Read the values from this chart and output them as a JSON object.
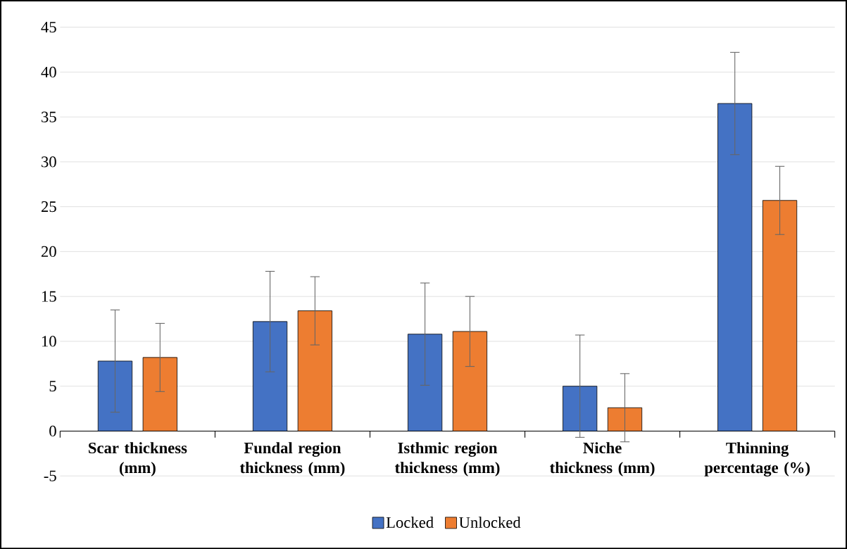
{
  "chart_data": {
    "type": "bar",
    "categories": [
      "Scar thickness (mm)",
      "Fundal region thickness (mm)",
      "Isthmic region thickness (mm)",
      "Niche thickness (mm)",
      "Thinning percentage (%)"
    ],
    "series": [
      {
        "name": "Locked",
        "color": "#4472c4",
        "values": [
          7.8,
          12.2,
          10.8,
          5.0,
          36.5
        ],
        "errors": [
          5.7,
          5.6,
          5.7,
          5.7,
          5.7
        ]
      },
      {
        "name": "Unlocked",
        "color": "#ed7d31",
        "values": [
          8.2,
          13.4,
          11.1,
          2.6,
          25.7
        ],
        "errors": [
          3.8,
          3.8,
          3.9,
          3.8,
          3.8
        ]
      }
    ],
    "ylim": [
      -5,
      45
    ],
    "yticks": [
      -5,
      0,
      5,
      10,
      15,
      20,
      25,
      30,
      35,
      40,
      45
    ],
    "grid": "y",
    "legend": "bottom"
  }
}
